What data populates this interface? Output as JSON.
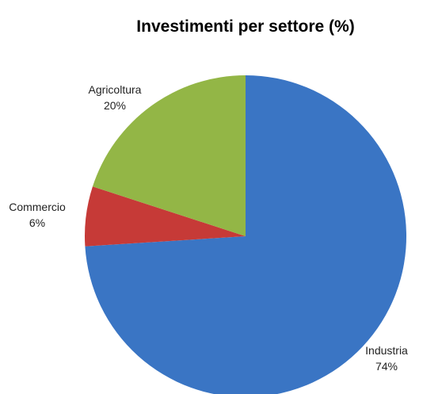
{
  "chart_data": {
    "type": "pie",
    "title": "Investimenti per settore (%)",
    "slices": [
      {
        "label": "Industria",
        "value": 74,
        "display": "74%",
        "color": "#3A75C4"
      },
      {
        "label": "Commercio",
        "value": 6,
        "display": "6%",
        "color": "#C63A37"
      },
      {
        "label": "Agricoltura",
        "value": 20,
        "display": "20%",
        "color": "#93B646"
      }
    ],
    "start_angle_deg": 0,
    "direction": "clockwise",
    "legend": "none",
    "data_labels": "category and percentage outside slices"
  }
}
